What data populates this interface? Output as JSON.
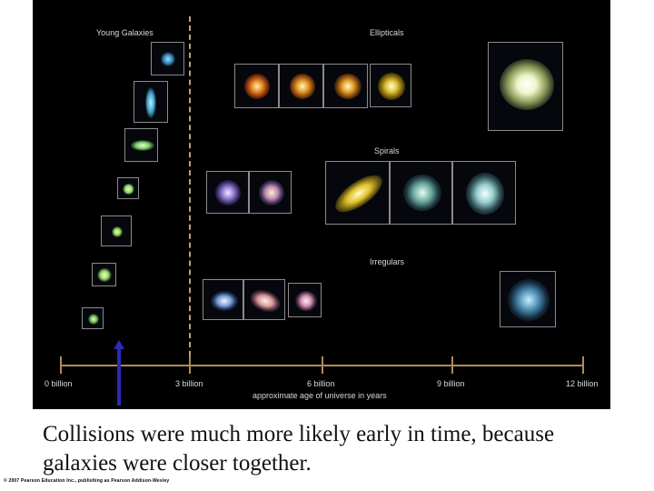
{
  "figure": {
    "category_labels": {
      "young": "Young Galaxies",
      "ellipticals": "Ellipticals",
      "spirals": "Spirals",
      "irregulars": "Irregulars"
    },
    "axis": {
      "title": "approximate age of universe in years",
      "ticks": [
        "0 billion",
        "3 billion",
        "6 billion",
        "9 billion",
        "12 billion"
      ]
    },
    "colors": {
      "background": "#000000",
      "axis": "#b08a5a",
      "marker_arrow": "#2b2bb5",
      "divider": "#b9a27a"
    }
  },
  "caption": {
    "line1": "Collisions were much more likely early in time, because",
    "line2": "galaxies were closer together."
  },
  "copyright": "© 2007 Pearson Education Inc., publishing as Pearson Addison-Wesley"
}
